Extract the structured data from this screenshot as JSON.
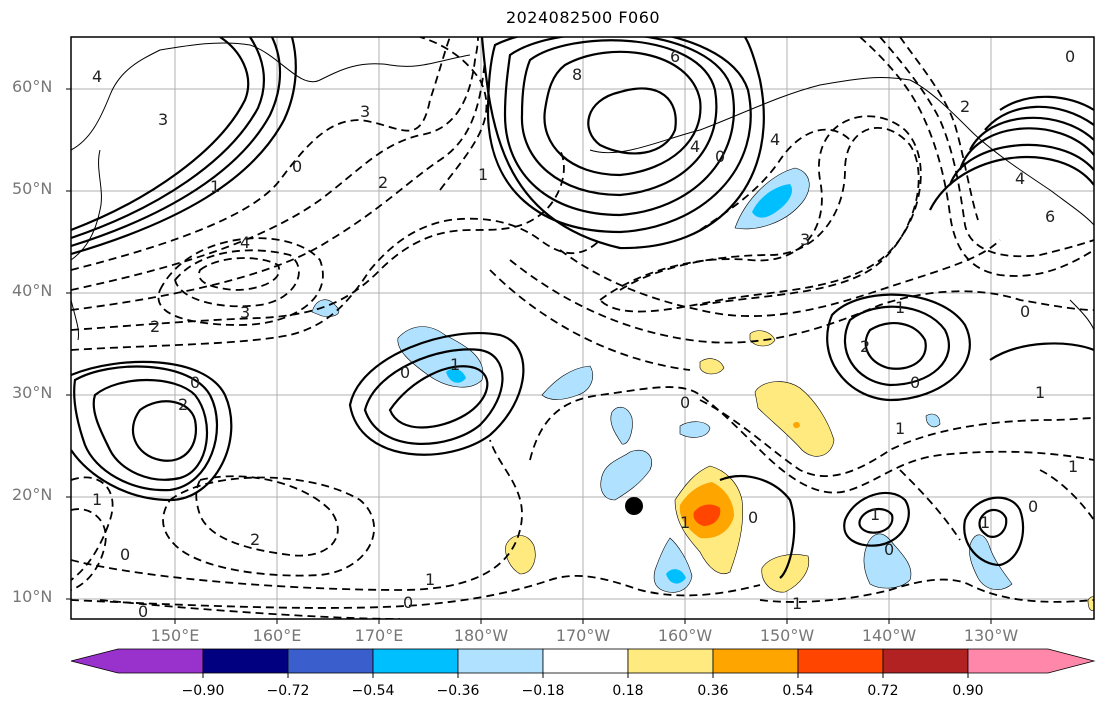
{
  "title": "2024082500 F060",
  "lat_labels": [
    "60°N",
    "50°N",
    "40°N",
    "30°N",
    "20°N",
    "10°N"
  ],
  "lon_labels": [
    "150°E",
    "160°E",
    "170°E",
    "180°W",
    "170°W",
    "160°W",
    "150°W",
    "140°W",
    "130°W"
  ],
  "colorbar": {
    "ticks": [
      "−0.90",
      "−0.72",
      "−0.54",
      "−0.36",
      "−0.18",
      "0.18",
      "0.36",
      "0.54",
      "0.72",
      "0.90"
    ],
    "colors": [
      "#9932cc",
      "#000080",
      "#3a5fcd",
      "#00bfff",
      "#b0e2ff",
      "#ffffff",
      "#ffea80",
      "#ffa500",
      "#ff4500",
      "#b22222",
      "#ff88aa"
    ]
  },
  "contour_labels": [
    "3",
    "1",
    "3",
    "8",
    "6",
    "4",
    "0",
    "4",
    "6",
    "2",
    "0",
    "1",
    "2",
    "4",
    "3",
    "3",
    "2",
    "0",
    "1",
    "0",
    "1",
    "1",
    "2",
    "0",
    "0",
    "1",
    "2",
    "0",
    "1",
    "0",
    "0",
    "1",
    "0",
    "1",
    "1",
    "1",
    "0",
    "1",
    "0",
    "2",
    "0",
    "1",
    "4",
    "4",
    "0"
  ],
  "marker": "typhoon-center-marker"
}
